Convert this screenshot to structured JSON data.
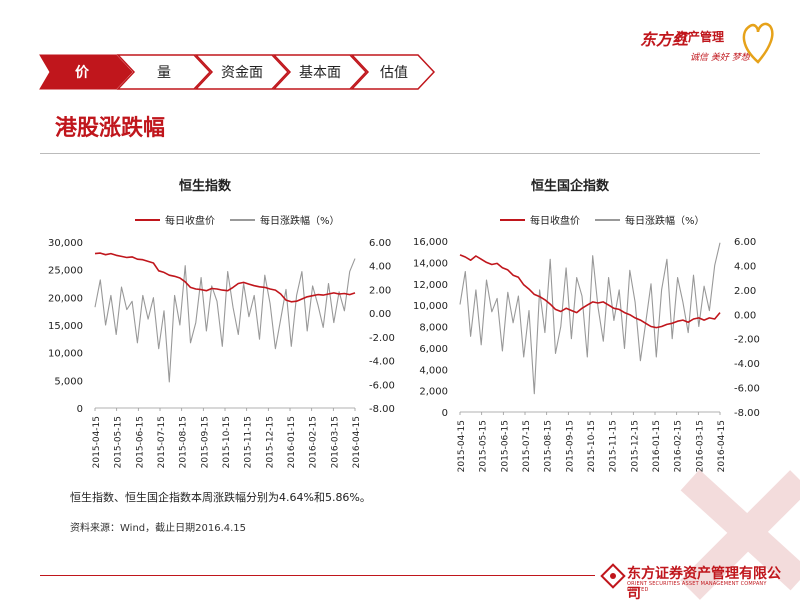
{
  "logo": {
    "brand": "东方红",
    "sub": "资产管理",
    "motto": "诚信 美好 梦想"
  },
  "tabs": [
    {
      "label": "价",
      "active": true
    },
    {
      "label": "量",
      "active": false
    },
    {
      "label": "资金面",
      "active": false
    },
    {
      "label": "基本面",
      "active": false
    },
    {
      "label": "估值",
      "active": false
    }
  ],
  "colors": {
    "accent": "#c0161c",
    "close": "#c0161c",
    "change": "#999999"
  },
  "section_title": "港股涨跌幅",
  "note": "恒生指数、恒生国企指数本周涨跌幅分别为4.64%和5.86%。",
  "source": "资料来源：Wind，截止日期2016.4.15",
  "footer": {
    "name": "东方证券资产管理有限公司",
    "en": "ORIENT SECURITIES ASSET MANAGEMENT COMPANY LIMITED"
  },
  "chart_data": [
    {
      "type": "line",
      "title": "恒生指数",
      "legend": [
        "每日收盘价",
        "每日涨跌幅（%）"
      ],
      "x_ticks": [
        "2015-04-15",
        "2015-05-15",
        "2015-06-15",
        "2015-07-15",
        "2015-08-15",
        "2015-09-15",
        "2015-10-15",
        "2015-11-15",
        "2015-12-15",
        "2016-01-15",
        "2016-02-15",
        "2016-03-15",
        "2016-04-15"
      ],
      "y_left": {
        "ticks": [
          "30,000",
          "25,000",
          "20,000",
          "15,000",
          "10,000",
          "5,000",
          "0"
        ],
        "range": [
          0,
          30000
        ]
      },
      "y_right": {
        "ticks": [
          "6.00",
          "4.00",
          "2.00",
          "0.00",
          "-2.00",
          "-4.00",
          "-6.00",
          "-8.00"
        ],
        "range": [
          -8,
          6
        ]
      },
      "series": [
        {
          "name": "每日收盘价",
          "axis": "left",
          "color": "#c0161c",
          "values": [
            27900,
            28000,
            27700,
            27900,
            27600,
            27400,
            27200,
            27300,
            26900,
            26800,
            26500,
            26200,
            24800,
            24500,
            24000,
            23800,
            23500,
            22800,
            21800,
            21500,
            21400,
            21200,
            21600,
            21500,
            21300,
            21200,
            21800,
            22500,
            22700,
            22400,
            22100,
            21900,
            21800,
            21500,
            21300,
            20600,
            19500,
            19200,
            19300,
            19700,
            20100,
            20300,
            20500,
            20400,
            20600,
            20800,
            20600,
            20700,
            20500,
            20800
          ]
        },
        {
          "name": "每日涨跌幅（%）",
          "axis": "right",
          "color": "#999999",
          "values": [
            0.5,
            2.8,
            -1.0,
            1.5,
            -1.8,
            2.2,
            0.3,
            1.0,
            -2.5,
            1.5,
            -0.5,
            1.3,
            -3.0,
            0.2,
            -5.8,
            1.5,
            -1.0,
            4.0,
            -2.5,
            -0.8,
            3.0,
            -1.5,
            2.3,
            1.0,
            -2.8,
            3.5,
            0.5,
            -1.8,
            2.5,
            -0.3,
            1.5,
            -2.2,
            3.2,
            0.8,
            -3.0,
            -0.5,
            2.0,
            -2.8,
            1.5,
            3.5,
            -1.5,
            2.3,
            0.7,
            -1.2,
            2.5,
            -0.8,
            1.8,
            0.2,
            3.5,
            4.6
          ]
        }
      ]
    },
    {
      "type": "line",
      "title": "恒生国企指数",
      "legend": [
        "每日收盘价",
        "每日涨跌幅（%）"
      ],
      "x_ticks": [
        "2015-04-15",
        "2015-05-15",
        "2015-06-15",
        "2015-07-15",
        "2015-08-15",
        "2015-09-15",
        "2015-10-15",
        "2015-11-15",
        "2015-12-15",
        "2016-01-15",
        "2016-02-15",
        "2016-03-15",
        "2016-04-15"
      ],
      "y_left": {
        "ticks": [
          "16,000",
          "14,000",
          "12,000",
          "10,000",
          "8,000",
          "6,000",
          "4,000",
          "2,000",
          "0"
        ],
        "range": [
          0,
          16000
        ]
      },
      "y_right": {
        "ticks": [
          "6.00",
          "4.00",
          "2.00",
          "0.00",
          "-2.00",
          "-4.00",
          "-6.00",
          "-8.00"
        ],
        "range": [
          -8,
          6
        ]
      },
      "series": [
        {
          "name": "每日收盘价",
          "axis": "left",
          "color": "#c0161c",
          "values": [
            14700,
            14500,
            14200,
            14600,
            14300,
            14000,
            13800,
            13900,
            13500,
            13300,
            12800,
            12600,
            11900,
            11500,
            11000,
            10800,
            10500,
            10100,
            9600,
            9400,
            9700,
            9500,
            9300,
            9700,
            10000,
            10300,
            10200,
            10300,
            10000,
            9700,
            9600,
            9300,
            9100,
            8800,
            8600,
            8300,
            8000,
            7900,
            8000,
            8200,
            8300,
            8500,
            8600,
            8400,
            8700,
            8800,
            8600,
            8800,
            8700,
            9300
          ]
        },
        {
          "name": "每日涨跌幅（%）",
          "axis": "right",
          "color": "#999999",
          "values": [
            0.8,
            3.5,
            -1.8,
            2.0,
            -2.5,
            2.8,
            0.2,
            1.3,
            -3.0,
            1.8,
            -0.7,
            1.5,
            -3.5,
            0.3,
            -6.5,
            2.0,
            -1.5,
            4.5,
            -3.2,
            -1.0,
            3.8,
            -2.0,
            3.0,
            1.5,
            -3.5,
            4.8,
            0.6,
            -2.2,
            3.0,
            -0.5,
            2.0,
            -2.8,
            3.6,
            1.0,
            -3.8,
            -0.7,
            2.5,
            -3.5,
            2.0,
            4.5,
            -2.0,
            3.0,
            1.0,
            -1.5,
            3.2,
            -1.0,
            2.3,
            0.3,
            4.0,
            5.86
          ]
        }
      ]
    }
  ]
}
